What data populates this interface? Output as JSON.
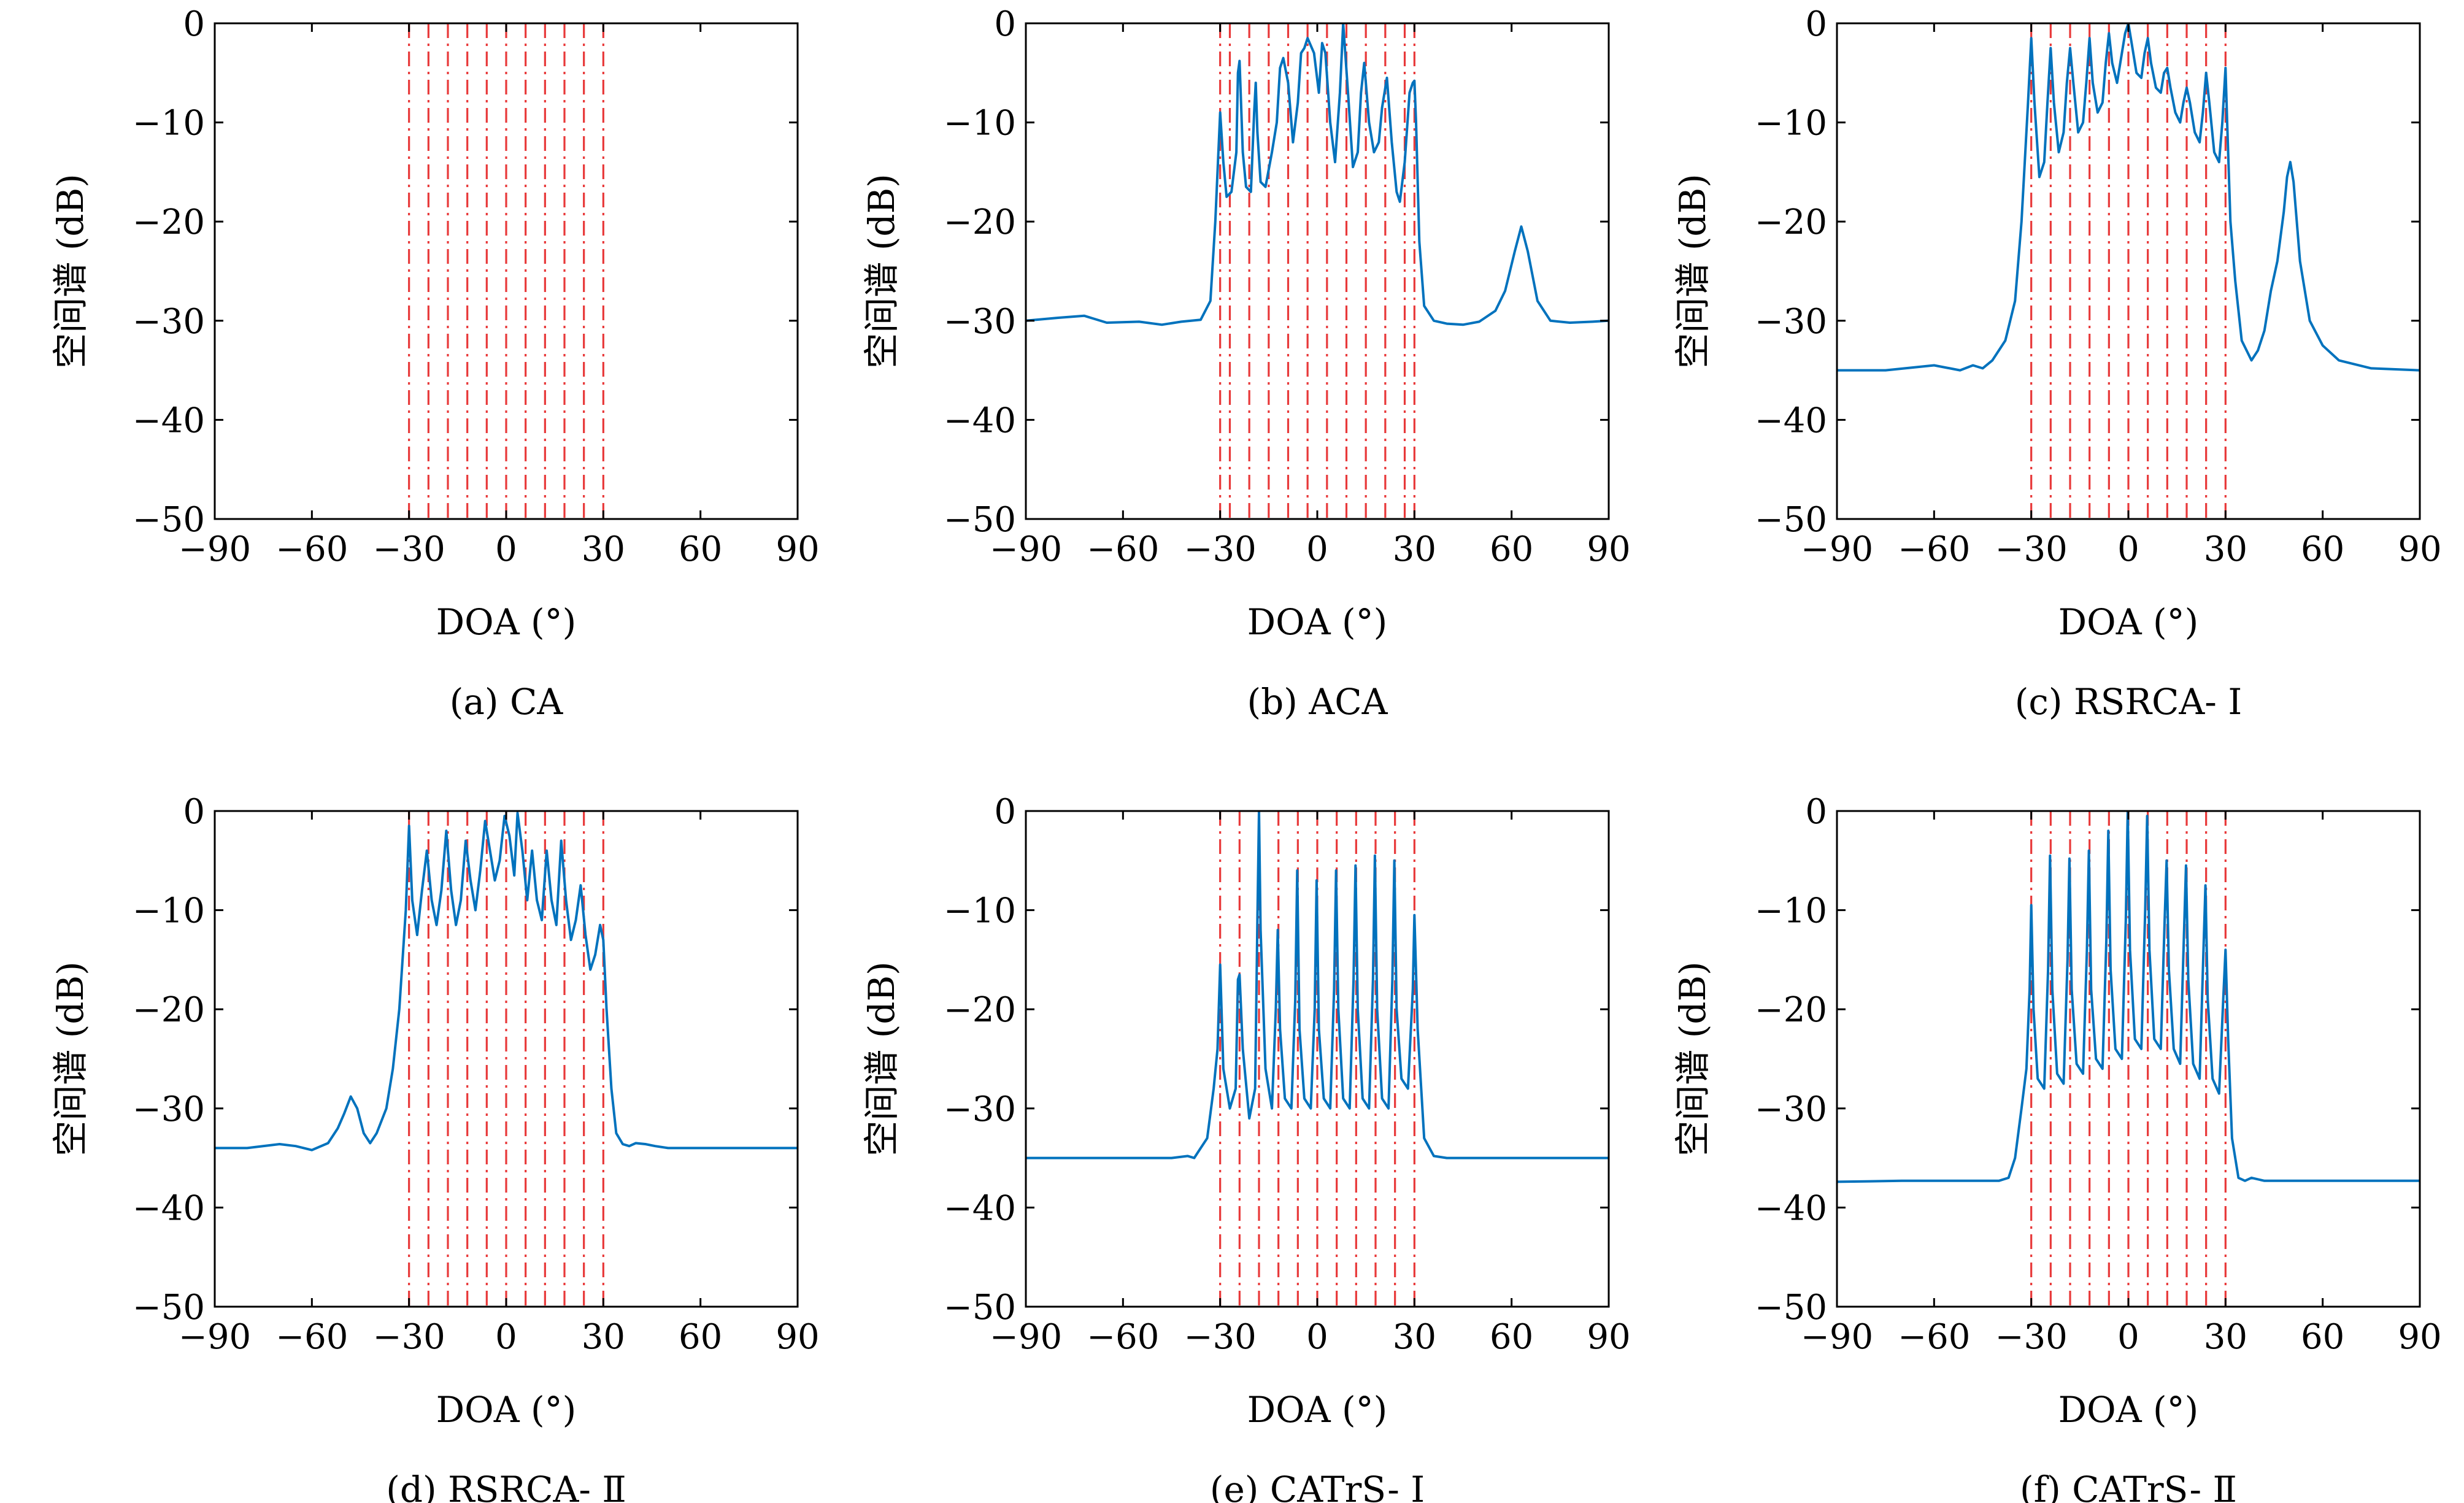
{
  "chart_data": [
    {
      "type": "line",
      "caption": "(a) CA",
      "xlabel": "DOA (°)",
      "ylabel": "空间谱 (dB)",
      "xlim": [
        -90,
        90
      ],
      "ylim": [
        -50,
        0
      ],
      "xticks": [
        -90,
        -60,
        -30,
        0,
        30,
        60,
        90
      ],
      "yticks": [
        0,
        -10,
        -20,
        -30,
        -40,
        -50
      ],
      "grid": false,
      "series_color": "#0072BD",
      "true_doa_color": "#E8393A",
      "true_doa": [
        -30,
        -24,
        -18,
        -12,
        -6,
        0,
        6,
        12,
        18,
        24,
        30
      ],
      "series": []
    },
    {
      "type": "line",
      "caption": "(b) ACA",
      "xlabel": "DOA (°)",
      "ylabel": "空间谱 (dB)",
      "xlim": [
        -90,
        90
      ],
      "ylim": [
        -50,
        0
      ],
      "xticks": [
        -90,
        -60,
        -30,
        0,
        30,
        60,
        90
      ],
      "yticks": [
        0,
        -10,
        -20,
        -30,
        -40,
        -50
      ],
      "grid": false,
      "series_color": "#0072BD",
      "true_doa_color": "#E8393A",
      "true_doa": [
        -30,
        -27,
        -21,
        -15,
        -9,
        -3,
        3,
        9,
        15,
        21,
        27,
        30
      ],
      "series": [
        {
          "x": [
            -90,
            -80,
            -72,
            -65,
            -55,
            -48,
            -42,
            -36,
            -33,
            -31.5,
            -30,
            -29,
            -28,
            -26.5,
            -25,
            -24.5,
            -24,
            -23,
            -22,
            -20.5,
            -19.5,
            -19,
            -18.5,
            -17.5,
            -16,
            -14,
            -12.5,
            -11.5,
            -10.5,
            -9,
            -7.5,
            -6,
            -5,
            -4,
            -3,
            -1,
            0.5,
            1.5,
            2.5,
            4,
            5.5,
            7,
            8,
            9.5,
            11,
            12.5,
            13.5,
            14.5,
            16,
            17.5,
            19,
            20,
            21.5,
            23,
            24.5,
            25.5,
            27,
            28.5,
            29.5,
            30,
            30.5,
            31.5,
            33,
            36,
            40,
            45,
            50,
            55,
            58,
            61,
            63,
            65,
            68,
            72,
            78,
            85,
            90
          ],
          "y": [
            -30,
            -29.7,
            -29.5,
            -30.2,
            -30.1,
            -30.4,
            -30.1,
            -29.9,
            -28,
            -20,
            -9,
            -14,
            -17.5,
            -17,
            -13,
            -5,
            -3.8,
            -13,
            -16.5,
            -17,
            -9,
            -6,
            -11,
            -16,
            -16.5,
            -13,
            -10,
            -4.5,
            -3.5,
            -6,
            -12,
            -8,
            -3,
            -2.5,
            -1.5,
            -3,
            -7,
            -2,
            -3,
            -10,
            -14,
            -7,
            0,
            -7,
            -14.5,
            -13,
            -7,
            -4,
            -10,
            -13,
            -12,
            -8.5,
            -5.5,
            -12,
            -17,
            -18,
            -14,
            -7,
            -6,
            -5.8,
            -10,
            -22,
            -28.5,
            -30,
            -30.3,
            -30.4,
            -30.1,
            -29,
            -27,
            -23,
            -20.5,
            -23,
            -28,
            -30,
            -30.2,
            -30.1,
            -30
          ]
        }
      ]
    },
    {
      "type": "line",
      "caption": "(c) RSRCA- Ⅰ",
      "xlabel": "DOA (°)",
      "ylabel": "空间谱 (dB)",
      "xlim": [
        -90,
        90
      ],
      "ylim": [
        -50,
        0
      ],
      "xticks": [
        -90,
        -60,
        -30,
        0,
        30,
        60,
        90
      ],
      "yticks": [
        0,
        -10,
        -20,
        -30,
        -40,
        -50
      ],
      "grid": false,
      "series_color": "#0072BD",
      "true_doa_color": "#E8393A",
      "true_doa": [
        -30,
        -24,
        -18,
        -12,
        -6,
        0,
        6,
        12,
        18,
        24,
        30
      ],
      "series": [
        {
          "x": [
            -90,
            -75,
            -60,
            -52,
            -48,
            -45,
            -42,
            -38,
            -35,
            -33,
            -31,
            -30,
            -29,
            -27.5,
            -26,
            -25,
            -24,
            -23,
            -21.5,
            -20,
            -19,
            -18,
            -17,
            -15.5,
            -14,
            -13,
            -12,
            -11,
            -9.5,
            -8,
            -7,
            -6,
            -5,
            -3.5,
            -2,
            -1,
            0,
            1,
            2.5,
            4,
            5,
            6,
            7,
            8.5,
            10,
            11,
            12,
            13,
            14.5,
            16,
            17,
            18,
            19,
            20.5,
            22,
            23,
            24,
            25,
            26.5,
            28,
            29,
            30,
            30.5,
            31.5,
            33,
            35,
            38,
            40,
            42,
            44,
            46,
            48,
            49,
            50,
            51,
            53,
            56,
            60,
            65,
            75,
            90
          ],
          "y": [
            -35,
            -35,
            -34.5,
            -35,
            -34.5,
            -34.8,
            -34,
            -32,
            -28,
            -20,
            -8,
            -1.5,
            -8,
            -15.5,
            -14,
            -8,
            -2.5,
            -8,
            -13,
            -11,
            -6,
            -2.5,
            -6,
            -11,
            -10,
            -6,
            -1.5,
            -6,
            -9,
            -8,
            -4,
            -1,
            -4,
            -6,
            -3,
            -1,
            0,
            -2,
            -5,
            -5.5,
            -3,
            -1.5,
            -4,
            -6.5,
            -7,
            -5,
            -4.5,
            -6.5,
            -9,
            -10,
            -8,
            -6.5,
            -8,
            -11,
            -12,
            -9,
            -5,
            -8,
            -13,
            -14,
            -10,
            -4.5,
            -10,
            -20,
            -26,
            -32,
            -34,
            -33,
            -31,
            -27,
            -24,
            -19,
            -15.5,
            -14,
            -16,
            -24,
            -30,
            -32.5,
            -34,
            -34.8,
            -35
          ]
        }
      ]
    },
    {
      "type": "line",
      "caption": "(d) RSRCA- Ⅱ",
      "xlabel": "DOA (°)",
      "ylabel": "空间谱 (dB)",
      "xlim": [
        -90,
        90
      ],
      "ylim": [
        -50,
        0
      ],
      "xticks": [
        -90,
        -60,
        -30,
        0,
        30,
        60,
        90
      ],
      "yticks": [
        0,
        -10,
        -20,
        -30,
        -40,
        -50
      ],
      "grid": false,
      "series_color": "#0072BD",
      "true_doa_color": "#E8393A",
      "true_doa": [
        -30,
        -24,
        -18,
        -12,
        -6,
        0,
        6,
        12,
        18,
        24,
        30
      ],
      "series": [
        {
          "x": [
            -90,
            -80,
            -70,
            -65,
            -60,
            -55,
            -52,
            -50,
            -48,
            -46,
            -44,
            -42,
            -40,
            -37,
            -35,
            -33,
            -31,
            -30,
            -29,
            -27.5,
            -26,
            -24.5,
            -23,
            -21.5,
            -20,
            -18.5,
            -17,
            -15.5,
            -14,
            -12.5,
            -11,
            -9.5,
            -8,
            -6.5,
            -5,
            -3.5,
            -2,
            -0.5,
            1,
            2.5,
            3.5,
            5,
            6.5,
            8,
            9.5,
            11,
            12.5,
            14,
            15.5,
            17,
            18.5,
            20,
            21.5,
            23,
            24.5,
            26,
            27.5,
            29,
            30,
            31,
            32.5,
            34,
            36,
            38,
            40,
            43,
            46,
            50,
            60,
            70,
            80,
            90
          ],
          "y": [
            -34,
            -34,
            -33.6,
            -33.8,
            -34.2,
            -33.5,
            -32,
            -30.5,
            -28.8,
            -30,
            -32.5,
            -33.5,
            -32.5,
            -30,
            -26,
            -20,
            -10,
            -1.5,
            -9,
            -12.5,
            -8,
            -4,
            -9,
            -11.5,
            -8,
            -2,
            -8,
            -11.5,
            -9,
            -3,
            -7,
            -10,
            -6,
            -1,
            -4,
            -7,
            -5,
            -0.5,
            -2.5,
            -6.5,
            -0.2,
            -4,
            -9,
            -4,
            -9,
            -11,
            -4,
            -9,
            -11.5,
            -3,
            -9,
            -13,
            -11,
            -7.5,
            -12.5,
            -16,
            -14.5,
            -11.5,
            -13,
            -20,
            -28,
            -32.5,
            -33.6,
            -33.8,
            -33.5,
            -33.6,
            -33.8,
            -34,
            -34,
            -34,
            -34,
            -34
          ]
        }
      ]
    },
    {
      "type": "line",
      "caption": "(e) CATrS- Ⅰ",
      "xlabel": "DOA (°)",
      "ylabel": "空间谱 (dB)",
      "xlim": [
        -90,
        90
      ],
      "ylim": [
        -50,
        0
      ],
      "xticks": [
        -90,
        -60,
        -30,
        0,
        30,
        60,
        90
      ],
      "yticks": [
        0,
        -10,
        -20,
        -30,
        -40,
        -50
      ],
      "grid": false,
      "series_color": "#0072BD",
      "true_doa_color": "#E8393A",
      "true_doa": [
        -30,
        -24,
        -18,
        -12,
        -6,
        0,
        6,
        12,
        18,
        24,
        30
      ],
      "series": [
        {
          "x": [
            -90,
            -70,
            -55,
            -45,
            -40,
            -38,
            -36,
            -34,
            -32,
            -30.8,
            -30,
            -29,
            -27,
            -25.2,
            -24.5,
            -24,
            -23,
            -21,
            -19.2,
            -18.5,
            -18,
            -17.5,
            -16,
            -14,
            -12.8,
            -12.2,
            -11.5,
            -10,
            -8,
            -6.8,
            -6.2,
            -5.5,
            -4,
            -2,
            -0.8,
            -0.2,
            0.5,
            2,
            4,
            5.2,
            5.8,
            6.5,
            8,
            10,
            11.2,
            11.8,
            12.5,
            14,
            16,
            17.2,
            17.8,
            18.5,
            20,
            22,
            23.2,
            23.8,
            24.5,
            26,
            28,
            29.5,
            30,
            31,
            33,
            36,
            40,
            50,
            60,
            75,
            90
          ],
          "y": [
            -35,
            -35,
            -35,
            -35,
            -34.8,
            -35,
            -34,
            -33,
            -28,
            -24,
            -15.5,
            -26,
            -30,
            -28,
            -17,
            -16.5,
            -24,
            -31,
            -28,
            -11,
            0,
            -12,
            -26,
            -30,
            -20,
            -12,
            -22,
            -29,
            -30,
            -19,
            -6,
            -22,
            -29,
            -30,
            -20,
            -7,
            -22,
            -29,
            -30,
            -18,
            -6,
            -20,
            -29,
            -30,
            -17,
            -5.5,
            -20,
            -29,
            -30,
            -17,
            -4.5,
            -20,
            -29,
            -30,
            -17,
            -5,
            -20,
            -27,
            -28,
            -18,
            -10.5,
            -22,
            -33,
            -34.8,
            -35,
            -35,
            -35,
            -35,
            -35
          ]
        }
      ]
    },
    {
      "type": "line",
      "caption": "(f) CATrS- Ⅱ",
      "xlabel": "DOA (°)",
      "ylabel": "空间谱 (dB)",
      "xlim": [
        -90,
        90
      ],
      "ylim": [
        -50,
        0
      ],
      "xticks": [
        -90,
        -60,
        -30,
        0,
        30,
        60,
        90
      ],
      "yticks": [
        0,
        -10,
        -20,
        -30,
        -40,
        -50
      ],
      "grid": false,
      "series_color": "#0072BD",
      "true_doa_color": "#E8393A",
      "true_doa": [
        -30,
        -24,
        -18,
        -12,
        -6,
        0,
        6,
        12,
        18,
        24,
        30
      ],
      "series": [
        {
          "x": [
            -90,
            -70,
            -55,
            -45,
            -40,
            -37,
            -35,
            -33,
            -31.5,
            -30.5,
            -30,
            -29.3,
            -28,
            -26,
            -24.8,
            -24.2,
            -23.5,
            -22,
            -20,
            -18.8,
            -18.2,
            -17.5,
            -16,
            -14,
            -12.8,
            -12.2,
            -11.5,
            -10,
            -8,
            -6.8,
            -6.2,
            -5.5,
            -4,
            -2,
            -0.8,
            -0.2,
            0.5,
            2,
            4,
            5.2,
            5.8,
            6.5,
            8,
            10,
            11.2,
            11.8,
            12.5,
            14,
            16,
            17.2,
            17.8,
            18.5,
            20,
            22,
            23.2,
            23.8,
            24.5,
            26,
            28,
            29.3,
            30,
            30.8,
            32,
            34,
            36,
            38,
            42,
            50,
            60,
            75,
            90
          ],
          "y": [
            -37.4,
            -37.3,
            -37.3,
            -37.3,
            -37.3,
            -37,
            -35,
            -30,
            -26,
            -18,
            -9.5,
            -20,
            -27,
            -28,
            -16,
            -4.5,
            -18,
            -26.5,
            -27.5,
            -15,
            -4.8,
            -18,
            -25.5,
            -26.5,
            -14,
            -4,
            -18,
            -25,
            -26,
            -13,
            -2,
            -16,
            -24,
            -25,
            -11,
            0,
            -14,
            -23,
            -24,
            -10,
            -0.5,
            -14,
            -23,
            -24,
            -11,
            -5,
            -16,
            -24,
            -25.5,
            -12,
            -5.5,
            -17,
            -25.5,
            -27,
            -14,
            -7.5,
            -19,
            -27,
            -28.5,
            -19,
            -14,
            -23,
            -33,
            -37,
            -37.3,
            -37,
            -37.3,
            -37.3,
            -37.3,
            -37.3,
            -37.3
          ]
        }
      ]
    }
  ]
}
